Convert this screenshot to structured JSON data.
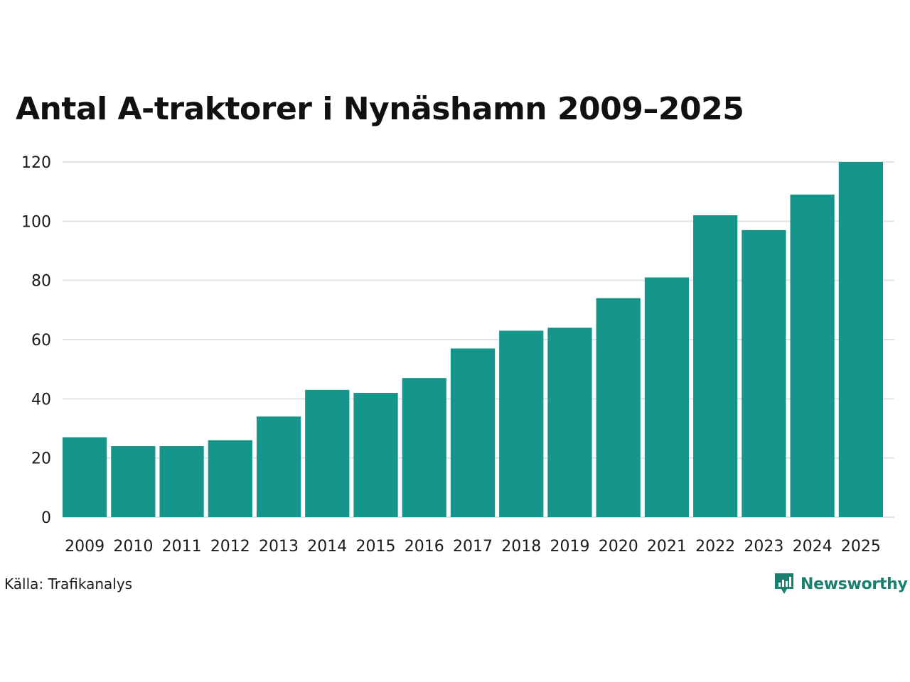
{
  "chart_data": {
    "type": "bar",
    "title": "Antal A-traktorer i Nynäshamn 2009–2025",
    "xlabel": "",
    "ylabel": "",
    "categories": [
      "2009",
      "2010",
      "2011",
      "2012",
      "2013",
      "2014",
      "2015",
      "2016",
      "2017",
      "2018",
      "2019",
      "2020",
      "2021",
      "2022",
      "2023",
      "2024",
      "2025"
    ],
    "values": [
      27,
      24,
      24,
      26,
      34,
      43,
      42,
      47,
      57,
      63,
      64,
      74,
      81,
      102,
      97,
      109,
      120
    ],
    "ylim": [
      0,
      120
    ],
    "yticks": [
      0,
      20,
      40,
      60,
      80,
      100,
      120
    ],
    "grid": true,
    "bar_color": "#16968a",
    "grid_color": "#e3e3e3"
  },
  "source": "Källa: Trafikanalys",
  "brand": {
    "name": "Newsworthy",
    "color": "#1a7f6f",
    "icon": "newsworthy-logo-icon"
  }
}
